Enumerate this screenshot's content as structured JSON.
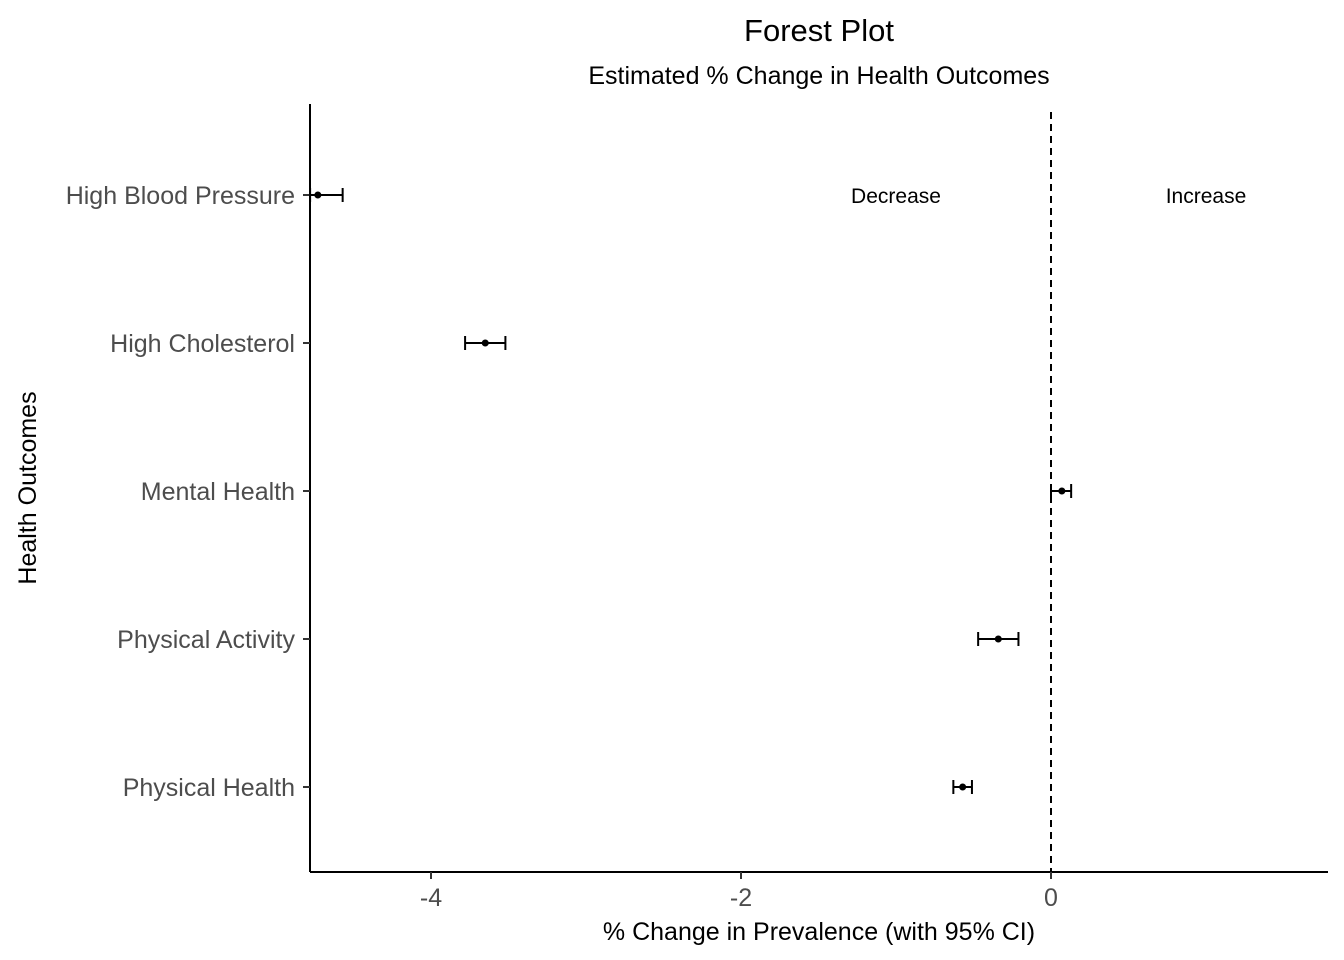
{
  "chart_data": {
    "type": "forest",
    "title": "Forest Plot",
    "subtitle": "Estimated % Change in Health Outcomes",
    "xlabel": "% Change in Prevalence (with 95% CI)",
    "ylabel": "Health Outcomes",
    "xlim": [
      -4.78,
      1.8
    ],
    "x_ticks": [
      -4,
      -2,
      0
    ],
    "x_tick_labels": [
      "-4",
      "-2",
      "0"
    ],
    "reference_line": 0,
    "grid": false,
    "annotations": [
      {
        "text": "Decrease",
        "x": -1.0,
        "row": 0
      },
      {
        "text": "Increase",
        "x": 1.0,
        "row": 0
      }
    ],
    "rows": [
      {
        "label": "High Blood Pressure",
        "estimate": -4.73,
        "lower": -4.78,
        "upper": -4.57
      },
      {
        "label": "High Cholesterol",
        "estimate": -3.65,
        "lower": -3.78,
        "upper": -3.52
      },
      {
        "label": "Mental Health",
        "estimate": 0.07,
        "lower": 0.0,
        "upper": 0.13
      },
      {
        "label": "Physical Activity",
        "estimate": -0.34,
        "lower": -0.47,
        "upper": -0.21
      },
      {
        "label": "Physical Health",
        "estimate": -0.57,
        "lower": -0.63,
        "upper": -0.51
      }
    ]
  }
}
